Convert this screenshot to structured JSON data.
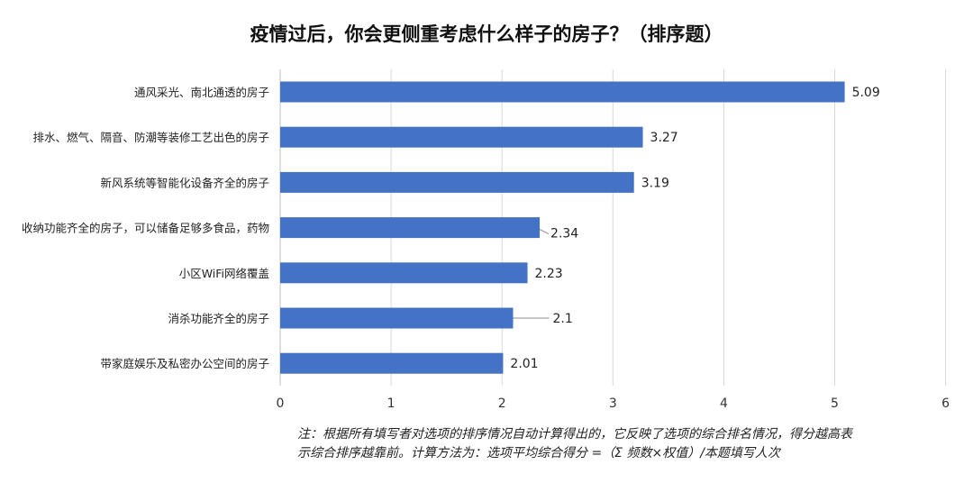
{
  "chart_data": {
    "type": "bar",
    "orientation": "horizontal",
    "title": "疫情过后，你会更侧重考虑什么样子的房子？（排序题）",
    "categories": [
      "通风采光、南北通透的房子",
      "排水、燃气、隔音、防潮等装修工艺出色的房子",
      "新风系统等智能化设备齐全的房子",
      "收纳功能齐全的房子，可以储备足够多食品，药物",
      "小区WiFi网络覆盖",
      "消杀功能齐全的房子",
      "带家庭娱乐及私密办公空间的房子"
    ],
    "values": [
      5.09,
      3.27,
      3.19,
      2.34,
      2.23,
      2.1,
      2.01
    ],
    "value_labels": [
      "5.09",
      "3.27",
      "3.19",
      "2.34",
      "2.23",
      "2.1",
      "2.01"
    ],
    "xlim": [
      0,
      6
    ],
    "xticks": [
      "0",
      "1",
      "2",
      "3",
      "4",
      "5",
      "6"
    ],
    "bar_color": "#4472C4",
    "grid": true
  },
  "footnote": {
    "line1": "注：根据所有填写者对选项的排序情况自动计算得出的，它反映了选项的综合排名情况，得分越高表",
    "line2": "示综合排序越靠前。计算方法为：选项平均综合得分 =（Σ 频数×权值）/本题填写人次"
  }
}
